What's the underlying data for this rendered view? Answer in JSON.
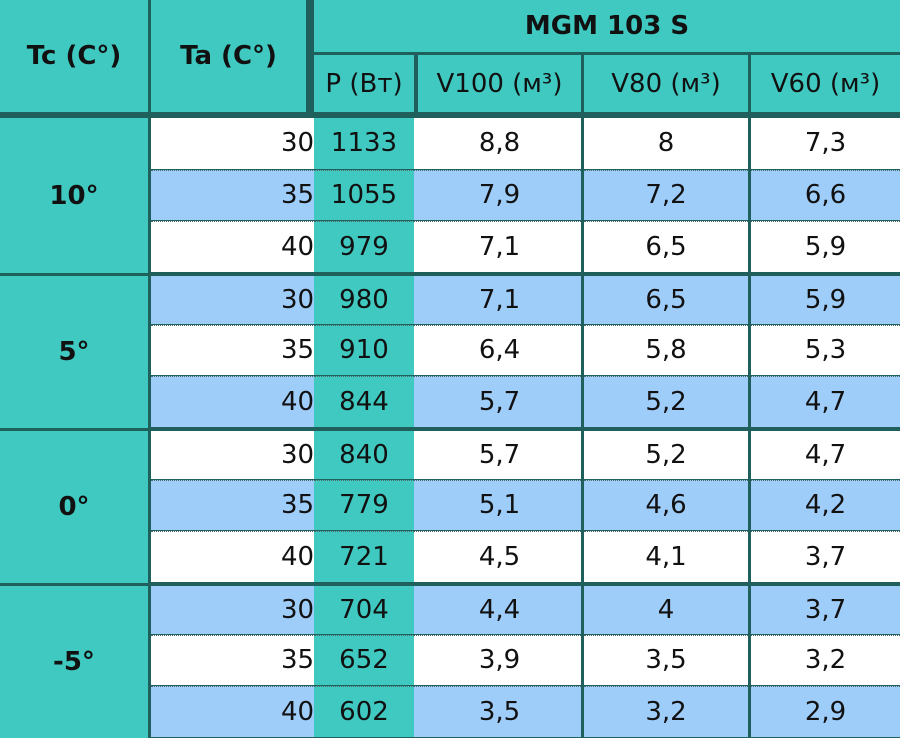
{
  "header": {
    "tc_label": "Tc (C°)",
    "ta_label": "Ta (C°)",
    "model": "MGM 103 S",
    "columns": [
      "P (Вт)",
      "V100 (м³)",
      "V80 (м³)",
      "V60 (м³)"
    ]
  },
  "groups": [
    {
      "tc": "10°",
      "rows": [
        [
          "30°",
          "1133",
          "8,8",
          "8",
          "7,3"
        ],
        [
          "35°",
          "1055",
          "7,9",
          "7,2",
          "6,6"
        ],
        [
          "40°",
          "979",
          "7,1",
          "6,5",
          "5,9"
        ]
      ]
    },
    {
      "tc": "5°",
      "rows": [
        [
          "30°",
          "980",
          "7,1",
          "6,5",
          "5,9"
        ],
        [
          "35°",
          "910",
          "6,4",
          "5,8",
          "5,3"
        ],
        [
          "40°",
          "844",
          "5,7",
          "5,2",
          "4,7"
        ]
      ]
    },
    {
      "tc": "0°",
      "rows": [
        [
          "30°",
          "840",
          "5,7",
          "5,2",
          "4,7"
        ],
        [
          "35°",
          "779",
          "5,1",
          "4,6",
          "4,2"
        ],
        [
          "40°",
          "721",
          "4,5",
          "4,1",
          "3,7"
        ]
      ]
    },
    {
      "tc": "-5°",
      "rows": [
        [
          "30°",
          "704",
          "4,4",
          "4",
          "3,7"
        ],
        [
          "35°",
          "652",
          "3,9",
          "3,5",
          "3,2"
        ],
        [
          "40°",
          "602",
          "3,5",
          "3,2",
          "2,9"
        ]
      ]
    }
  ]
}
